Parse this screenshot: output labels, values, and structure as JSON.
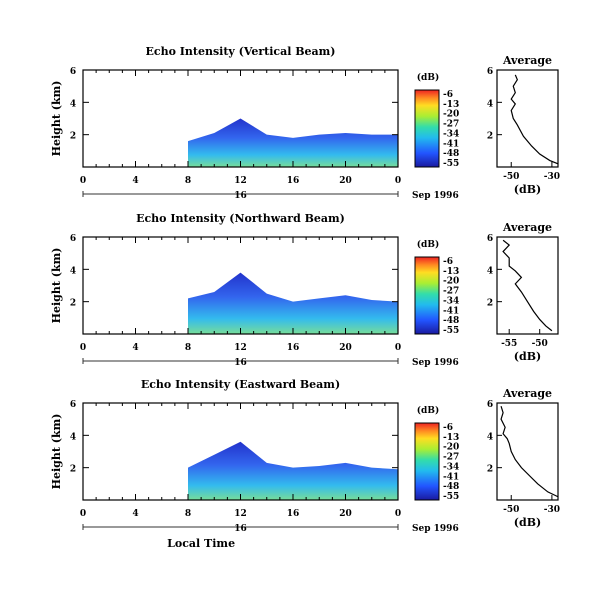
{
  "chart_data": [
    {
      "type": "heatmap",
      "title": "Echo Intensity (Vertical Beam)",
      "ylabel": "Height (km)",
      "xticks": [
        "0",
        "4",
        "8",
        "12",
        "16",
        "20",
        "0"
      ],
      "yticks": [
        "2",
        "4",
        "6"
      ],
      "xlim": [
        0,
        24
      ],
      "ylim": [
        0,
        6
      ],
      "day_label": "16",
      "date_label": "Sep 1996",
      "colorbar": {
        "label": "(dB)",
        "ticks": [
          "-6",
          "-13",
          "-20",
          "-27",
          "-34",
          "-41",
          "-48",
          "-55"
        ]
      },
      "fill": {
        "x": [
          8,
          10,
          12,
          14,
          16,
          18,
          20,
          22,
          24
        ],
        "top": [
          1.6,
          2.1,
          3.0,
          2.0,
          1.8,
          2.0,
          2.1,
          2.0,
          2.0
        ]
      },
      "average": {
        "title": "Average",
        "xlabel": "(dB)",
        "xticks": [
          "-50",
          "-30"
        ],
        "yticks": [
          "2",
          "4",
          "6"
        ],
        "xlim": [
          -57,
          -27
        ],
        "ylim": [
          0,
          6
        ],
        "points": [
          [
            -27,
            0.2
          ],
          [
            -31,
            0.4
          ],
          [
            -36,
            0.8
          ],
          [
            -40,
            1.3
          ],
          [
            -44,
            1.9
          ],
          [
            -47,
            2.6
          ],
          [
            -49,
            3.0
          ],
          [
            -50,
            3.5
          ],
          [
            -48,
            3.9
          ],
          [
            -50,
            4.2
          ],
          [
            -48,
            4.6
          ],
          [
            -49,
            5.0
          ],
          [
            -47,
            5.4
          ],
          [
            -48,
            5.7
          ]
        ]
      }
    },
    {
      "type": "heatmap",
      "title": "Echo Intensity (Northward Beam)",
      "ylabel": "Height (km)",
      "xticks": [
        "0",
        "4",
        "8",
        "12",
        "16",
        "20",
        "0"
      ],
      "yticks": [
        "2",
        "4",
        "6"
      ],
      "xlim": [
        0,
        24
      ],
      "ylim": [
        0,
        6
      ],
      "day_label": "16",
      "date_label": "Sep 1996",
      "colorbar": {
        "label": "(dB)",
        "ticks": [
          "-6",
          "-13",
          "-20",
          "-27",
          "-34",
          "-41",
          "-48",
          "-55"
        ]
      },
      "fill": {
        "x": [
          8,
          10,
          12,
          14,
          16,
          18,
          20,
          22,
          24
        ],
        "top": [
          2.2,
          2.6,
          3.8,
          2.5,
          2.0,
          2.2,
          2.4,
          2.1,
          2.0
        ]
      },
      "average": {
        "title": "Average",
        "xlabel": "(dB)",
        "xticks": [
          "-55",
          "-50"
        ],
        "yticks": [
          "2",
          "4",
          "6"
        ],
        "xlim": [
          -57,
          -47
        ],
        "ylim": [
          0,
          6
        ],
        "points": [
          [
            -48,
            0.2
          ],
          [
            -49,
            0.5
          ],
          [
            -50,
            0.9
          ],
          [
            -51,
            1.4
          ],
          [
            -52,
            2.0
          ],
          [
            -53,
            2.6
          ],
          [
            -54,
            3.1
          ],
          [
            -53,
            3.5
          ],
          [
            -54,
            3.9
          ],
          [
            -55,
            4.2
          ],
          [
            -55,
            4.7
          ],
          [
            -56,
            5.1
          ],
          [
            -55,
            5.5
          ],
          [
            -56,
            5.8
          ]
        ]
      }
    },
    {
      "type": "heatmap",
      "title": "Echo Intensity (Eastward Beam)",
      "ylabel": "Height (km)",
      "xticks": [
        "0",
        "4",
        "8",
        "12",
        "16",
        "20",
        "0"
      ],
      "yticks": [
        "2",
        "4",
        "6"
      ],
      "xlim": [
        0,
        24
      ],
      "ylim": [
        0,
        6
      ],
      "day_label": "16",
      "date_label": "Sep 1996",
      "xlabel": "Local Time",
      "colorbar": {
        "label": "(dB)",
        "ticks": [
          "-6",
          "-13",
          "-20",
          "-27",
          "-34",
          "-41",
          "-48",
          "-55"
        ]
      },
      "fill": {
        "x": [
          8,
          10,
          12,
          14,
          16,
          18,
          20,
          22,
          24
        ],
        "top": [
          2.0,
          2.8,
          3.6,
          2.3,
          2.0,
          2.1,
          2.3,
          2.0,
          1.9
        ]
      },
      "average": {
        "title": "Average",
        "xlabel": "(dB)",
        "xticks": [
          "-50",
          "-30"
        ],
        "yticks": [
          "2",
          "4",
          "6"
        ],
        "xlim": [
          -57,
          -27
        ],
        "ylim": [
          0,
          6
        ],
        "points": [
          [
            -27,
            0.2
          ],
          [
            -32,
            0.5
          ],
          [
            -37,
            1.0
          ],
          [
            -41,
            1.5
          ],
          [
            -45,
            2.0
          ],
          [
            -48,
            2.5
          ],
          [
            -50,
            3.0
          ],
          [
            -51,
            3.5
          ],
          [
            -52,
            3.8
          ],
          [
            -54,
            4.1
          ],
          [
            -53,
            4.5
          ],
          [
            -55,
            5.0
          ],
          [
            -54,
            5.4
          ],
          [
            -55,
            5.8
          ]
        ]
      }
    }
  ]
}
